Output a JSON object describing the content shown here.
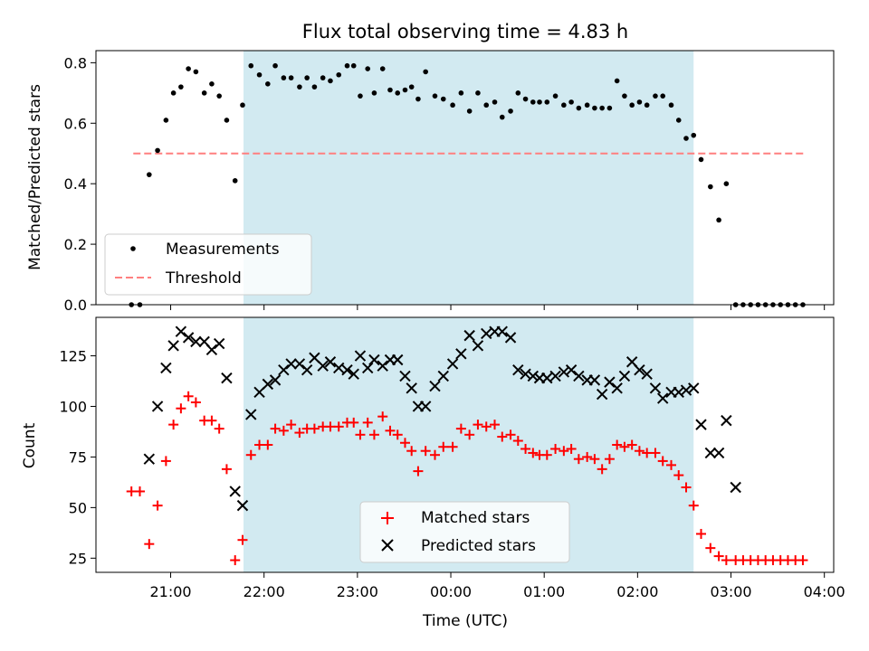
{
  "chart_data": {
    "title": "Flux total observing time = 4.83 h",
    "xlabel": "Time (UTC)",
    "x_unit": "hours UTC (values past 24 are after midnight)",
    "xlim": [
      20.2,
      28.1
    ],
    "x_ticks": [
      {
        "x": 21,
        "label": "21:00"
      },
      {
        "x": 22,
        "label": "22:00"
      },
      {
        "x": 23,
        "label": "23:00"
      },
      {
        "x": 24,
        "label": "00:00"
      },
      {
        "x": 25,
        "label": "01:00"
      },
      {
        "x": 26,
        "label": "02:00"
      },
      {
        "x": 27,
        "label": "03:00"
      },
      {
        "x": 28,
        "label": "04:00"
      }
    ],
    "shaded_interval": [
      21.78,
      26.6
    ],
    "shade_color": "#add8e6",
    "top_panel": {
      "type": "scatter",
      "ylabel": "Matched/Predicted stars",
      "ylim": [
        0,
        0.84
      ],
      "y_ticks": [
        0.0,
        0.2,
        0.4,
        0.6,
        0.8
      ],
      "threshold": {
        "name": "Threshold",
        "value": 0.5,
        "x_range": [
          20.6,
          27.8
        ],
        "color": "#ff7f7f"
      },
      "legend": [
        "Measurements",
        "Threshold"
      ],
      "legend_position": "lower-left",
      "series": [
        {
          "name": "Measurements",
          "color": "#000000",
          "points": [
            [
              20.58,
              0.0
            ],
            [
              20.67,
              0.0
            ],
            [
              20.77,
              0.43
            ],
            [
              20.86,
              0.51
            ],
            [
              20.95,
              0.61
            ],
            [
              21.03,
              0.7
            ],
            [
              21.11,
              0.72
            ],
            [
              21.19,
              0.78
            ],
            [
              21.27,
              0.77
            ],
            [
              21.36,
              0.7
            ],
            [
              21.44,
              0.73
            ],
            [
              21.52,
              0.69
            ],
            [
              21.6,
              0.61
            ],
            [
              21.69,
              0.41
            ],
            [
              21.77,
              0.66
            ],
            [
              21.86,
              0.79
            ],
            [
              21.95,
              0.76
            ],
            [
              22.04,
              0.73
            ],
            [
              22.12,
              0.79
            ],
            [
              22.21,
              0.75
            ],
            [
              22.29,
              0.75
            ],
            [
              22.38,
              0.72
            ],
            [
              22.46,
              0.75
            ],
            [
              22.54,
              0.72
            ],
            [
              22.63,
              0.75
            ],
            [
              22.71,
              0.74
            ],
            [
              22.8,
              0.76
            ],
            [
              22.89,
              0.79
            ],
            [
              22.96,
              0.79
            ],
            [
              23.03,
              0.69
            ],
            [
              23.11,
              0.78
            ],
            [
              23.18,
              0.7
            ],
            [
              23.27,
              0.78
            ],
            [
              23.35,
              0.71
            ],
            [
              23.43,
              0.7
            ],
            [
              23.51,
              0.71
            ],
            [
              23.58,
              0.72
            ],
            [
              23.65,
              0.68
            ],
            [
              23.73,
              0.77
            ],
            [
              23.83,
              0.69
            ],
            [
              23.92,
              0.68
            ],
            [
              24.02,
              0.66
            ],
            [
              24.11,
              0.7
            ],
            [
              24.2,
              0.64
            ],
            [
              24.29,
              0.7
            ],
            [
              24.38,
              0.66
            ],
            [
              24.47,
              0.67
            ],
            [
              24.55,
              0.62
            ],
            [
              24.64,
              0.64
            ],
            [
              24.72,
              0.7
            ],
            [
              24.8,
              0.68
            ],
            [
              24.88,
              0.67
            ],
            [
              24.95,
              0.67
            ],
            [
              25.03,
              0.67
            ],
            [
              25.12,
              0.69
            ],
            [
              25.21,
              0.66
            ],
            [
              25.29,
              0.67
            ],
            [
              25.37,
              0.65
            ],
            [
              25.46,
              0.66
            ],
            [
              25.54,
              0.65
            ],
            [
              25.62,
              0.65
            ],
            [
              25.7,
              0.65
            ],
            [
              25.78,
              0.74
            ],
            [
              25.86,
              0.69
            ],
            [
              25.94,
              0.66
            ],
            [
              26.02,
              0.67
            ],
            [
              26.1,
              0.66
            ],
            [
              26.19,
              0.69
            ],
            [
              26.27,
              0.69
            ],
            [
              26.36,
              0.66
            ],
            [
              26.44,
              0.61
            ],
            [
              26.52,
              0.55
            ],
            [
              26.6,
              0.56
            ],
            [
              26.68,
              0.48
            ],
            [
              26.78,
              0.39
            ],
            [
              26.87,
              0.28
            ],
            [
              26.95,
              0.4
            ],
            [
              27.05,
              0.0
            ],
            [
              27.13,
              0.0
            ],
            [
              27.21,
              0.0
            ],
            [
              27.29,
              0.0
            ],
            [
              27.37,
              0.0
            ],
            [
              27.45,
              0.0
            ],
            [
              27.53,
              0.0
            ],
            [
              27.61,
              0.0
            ],
            [
              27.69,
              0.0
            ],
            [
              27.77,
              0.0
            ]
          ]
        }
      ]
    },
    "bottom_panel": {
      "type": "scatter",
      "ylabel": "Count",
      "ylim": [
        18,
        144
      ],
      "y_ticks": [
        25,
        50,
        75,
        100,
        125
      ],
      "legend": [
        "Matched stars",
        "Predicted stars"
      ],
      "legend_position": "lower-center",
      "series": [
        {
          "name": "Matched stars",
          "marker": "+",
          "color": "#ff0000",
          "points": [
            [
              20.58,
              58
            ],
            [
              20.67,
              58
            ],
            [
              20.77,
              32
            ],
            [
              20.86,
              51
            ],
            [
              20.95,
              73
            ],
            [
              21.03,
              91
            ],
            [
              21.11,
              99
            ],
            [
              21.19,
              105
            ],
            [
              21.27,
              102
            ],
            [
              21.36,
              93
            ],
            [
              21.44,
              93
            ],
            [
              21.52,
              89
            ],
            [
              21.6,
              69
            ],
            [
              21.69,
              24
            ],
            [
              21.77,
              34
            ],
            [
              21.86,
              76
            ],
            [
              21.95,
              81
            ],
            [
              22.04,
              81
            ],
            [
              22.12,
              89
            ],
            [
              22.21,
              88
            ],
            [
              22.29,
              91
            ],
            [
              22.38,
              87
            ],
            [
              22.46,
              89
            ],
            [
              22.54,
              89
            ],
            [
              22.63,
              90
            ],
            [
              22.71,
              90
            ],
            [
              22.8,
              90
            ],
            [
              22.89,
              92
            ],
            [
              22.96,
              92
            ],
            [
              23.03,
              86
            ],
            [
              23.11,
              92
            ],
            [
              23.18,
              86
            ],
            [
              23.27,
              95
            ],
            [
              23.35,
              88
            ],
            [
              23.43,
              86
            ],
            [
              23.51,
              82
            ],
            [
              23.58,
              78
            ],
            [
              23.65,
              68
            ],
            [
              23.73,
              78
            ],
            [
              23.83,
              76
            ],
            [
              23.92,
              80
            ],
            [
              24.02,
              80
            ],
            [
              24.11,
              89
            ],
            [
              24.2,
              86
            ],
            [
              24.29,
              91
            ],
            [
              24.38,
              90
            ],
            [
              24.47,
              91
            ],
            [
              24.55,
              85
            ],
            [
              24.64,
              86
            ],
            [
              24.72,
              83
            ],
            [
              24.8,
              79
            ],
            [
              24.88,
              77
            ],
            [
              24.95,
              76
            ],
            [
              25.03,
              76
            ],
            [
              25.12,
              79
            ],
            [
              25.21,
              78
            ],
            [
              25.29,
              79
            ],
            [
              25.37,
              74
            ],
            [
              25.46,
              75
            ],
            [
              25.54,
              74
            ],
            [
              25.62,
              69
            ],
            [
              25.7,
              74
            ],
            [
              25.78,
              81
            ],
            [
              25.86,
              80
            ],
            [
              25.94,
              81
            ],
            [
              26.02,
              78
            ],
            [
              26.1,
              77
            ],
            [
              26.19,
              77
            ],
            [
              26.27,
              73
            ],
            [
              26.36,
              71
            ],
            [
              26.44,
              66
            ],
            [
              26.52,
              60
            ],
            [
              26.6,
              51
            ],
            [
              26.68,
              37
            ],
            [
              26.78,
              30
            ],
            [
              26.87,
              26
            ],
            [
              26.95,
              24
            ],
            [
              27.05,
              24
            ],
            [
              27.13,
              24
            ],
            [
              27.21,
              24
            ],
            [
              27.29,
              24
            ],
            [
              27.37,
              24
            ],
            [
              27.45,
              24
            ],
            [
              27.53,
              24
            ],
            [
              27.61,
              24
            ],
            [
              27.69,
              24
            ],
            [
              27.77,
              24
            ]
          ]
        },
        {
          "name": "Predicted stars",
          "marker": "x",
          "color": "#000000",
          "points": [
            [
              20.77,
              74
            ],
            [
              20.86,
              100
            ],
            [
              20.95,
              119
            ],
            [
              21.03,
              130
            ],
            [
              21.11,
              137
            ],
            [
              21.19,
              134
            ],
            [
              21.27,
              132
            ],
            [
              21.36,
              132
            ],
            [
              21.44,
              128
            ],
            [
              21.52,
              131
            ],
            [
              21.6,
              114
            ],
            [
              21.69,
              58
            ],
            [
              21.77,
              51
            ],
            [
              21.86,
              96
            ],
            [
              21.95,
              107
            ],
            [
              22.04,
              111
            ],
            [
              22.12,
              113
            ],
            [
              22.21,
              118
            ],
            [
              22.29,
              121
            ],
            [
              22.38,
              121
            ],
            [
              22.46,
              118
            ],
            [
              22.54,
              124
            ],
            [
              22.63,
              120
            ],
            [
              22.71,
              122
            ],
            [
              22.8,
              119
            ],
            [
              22.89,
              118
            ],
            [
              22.96,
              116
            ],
            [
              23.03,
              125
            ],
            [
              23.11,
              119
            ],
            [
              23.18,
              123
            ],
            [
              23.27,
              120
            ],
            [
              23.35,
              123
            ],
            [
              23.43,
              123
            ],
            [
              23.51,
              115
            ],
            [
              23.58,
              109
            ],
            [
              23.65,
              100
            ],
            [
              23.73,
              100
            ],
            [
              23.83,
              110
            ],
            [
              23.92,
              115
            ],
            [
              24.02,
              121
            ],
            [
              24.11,
              126
            ],
            [
              24.2,
              135
            ],
            [
              24.29,
              130
            ],
            [
              24.38,
              136
            ],
            [
              24.47,
              137
            ],
            [
              24.55,
              137
            ],
            [
              24.64,
              134
            ],
            [
              24.72,
              118
            ],
            [
              24.8,
              116
            ],
            [
              24.88,
              115
            ],
            [
              24.95,
              114
            ],
            [
              25.03,
              114
            ],
            [
              25.12,
              115
            ],
            [
              25.21,
              117
            ],
            [
              25.29,
              118
            ],
            [
              25.37,
              115
            ],
            [
              25.46,
              113
            ],
            [
              25.54,
              113
            ],
            [
              25.62,
              106
            ],
            [
              25.7,
              112
            ],
            [
              25.78,
              109
            ],
            [
              25.86,
              115
            ],
            [
              25.94,
              122
            ],
            [
              26.02,
              118
            ],
            [
              26.1,
              116
            ],
            [
              26.19,
              109
            ],
            [
              26.27,
              104
            ],
            [
              26.36,
              107
            ],
            [
              26.44,
              107
            ],
            [
              26.52,
              108
            ],
            [
              26.6,
              109
            ],
            [
              26.68,
              91
            ],
            [
              26.78,
              77
            ],
            [
              26.87,
              77
            ],
            [
              26.95,
              93
            ],
            [
              27.05,
              60
            ]
          ]
        }
      ]
    }
  }
}
